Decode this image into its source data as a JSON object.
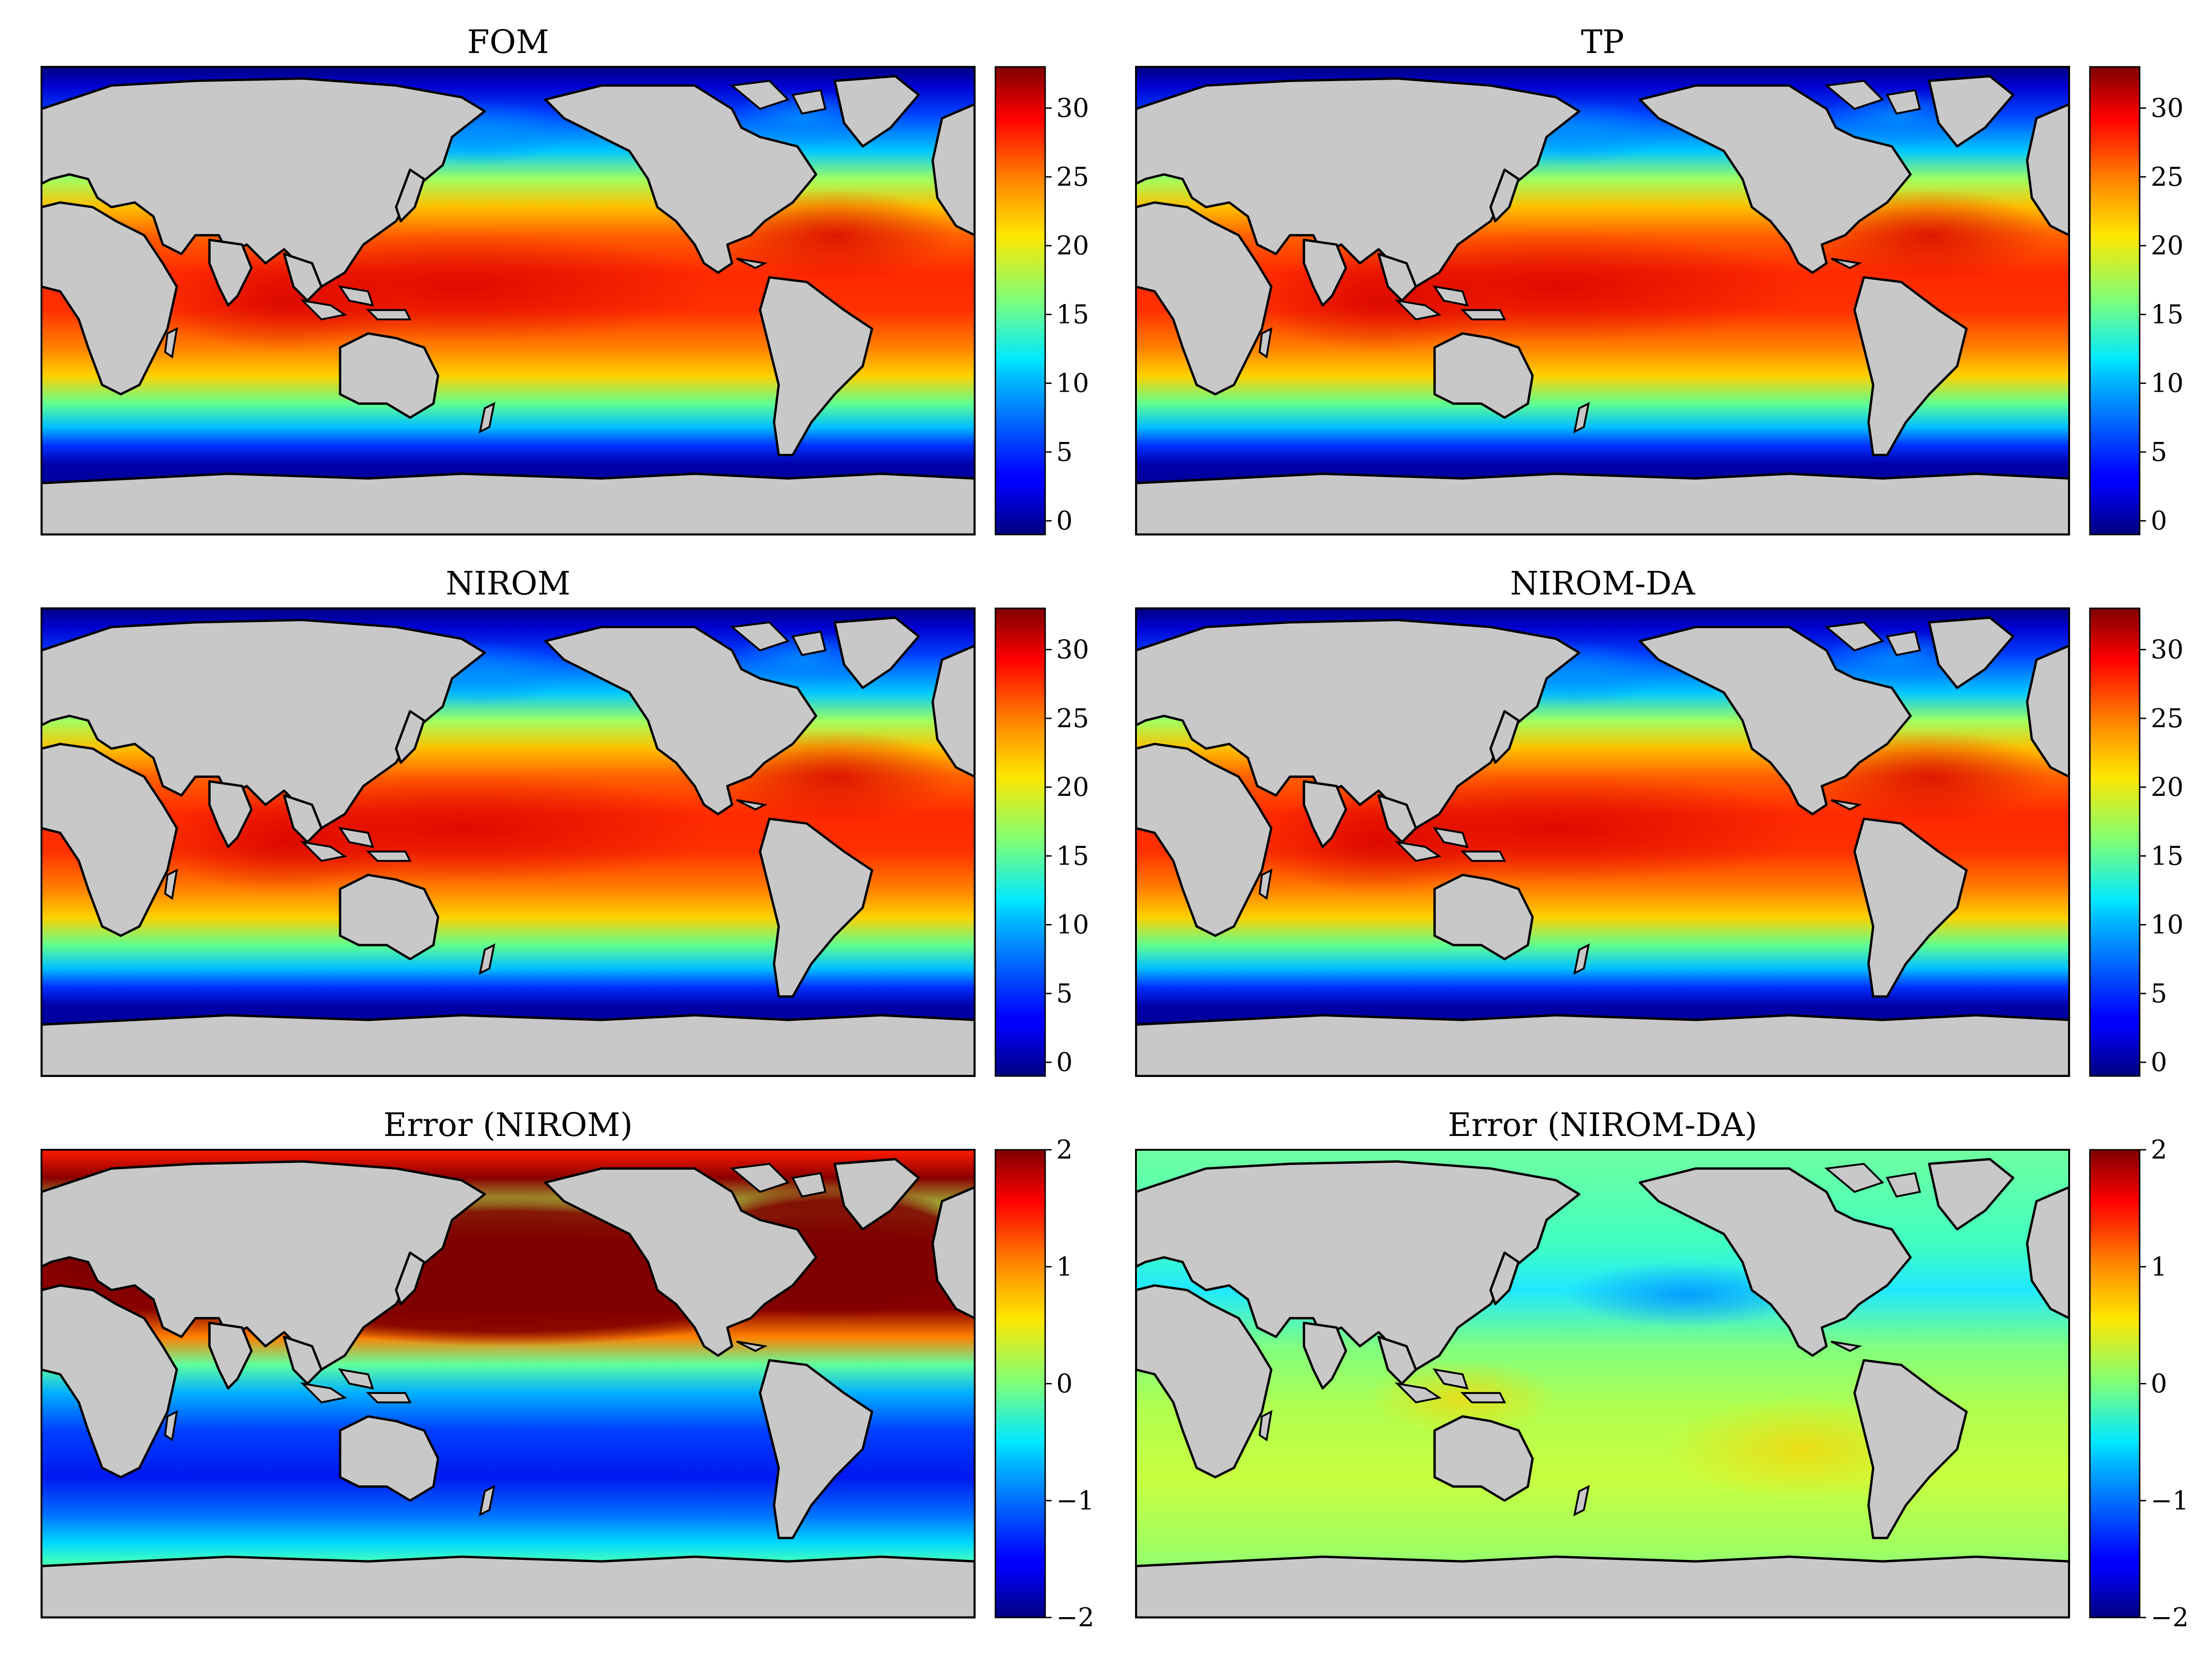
{
  "figure": {
    "colormap": "jet",
    "land_color": "#c8c8c8",
    "panels": [
      {
        "id": "fom",
        "title": "FOM",
        "field": "sst",
        "colorbar": {
          "min": -1,
          "max": 33,
          "ticks": [
            "0",
            "5",
            "10",
            "15",
            "20",
            "25",
            "30"
          ],
          "tick_values": [
            0,
            5,
            10,
            15,
            20,
            25,
            30
          ]
        }
      },
      {
        "id": "tp",
        "title": "TP",
        "field": "sst",
        "colorbar": {
          "min": -1,
          "max": 33,
          "ticks": [
            "0",
            "5",
            "10",
            "15",
            "20",
            "25",
            "30"
          ],
          "tick_values": [
            0,
            5,
            10,
            15,
            20,
            25,
            30
          ]
        }
      },
      {
        "id": "nirom",
        "title": "NIROM",
        "field": "sst",
        "colorbar": {
          "min": -1,
          "max": 33,
          "ticks": [
            "0",
            "5",
            "10",
            "15",
            "20",
            "25",
            "30"
          ],
          "tick_values": [
            0,
            5,
            10,
            15,
            20,
            25,
            30
          ]
        }
      },
      {
        "id": "nirom-da",
        "title": "NIROM-DA",
        "field": "sst",
        "colorbar": {
          "min": -1,
          "max": 33,
          "ticks": [
            "0",
            "5",
            "10",
            "15",
            "20",
            "25",
            "30"
          ],
          "tick_values": [
            0,
            5,
            10,
            15,
            20,
            25,
            30
          ]
        }
      },
      {
        "id": "error-nirom",
        "title": "Error (NIROM)",
        "field": "error_large",
        "colorbar": {
          "min": -2,
          "max": 2,
          "ticks": [
            "−2",
            "−1",
            "0",
            "1",
            "2"
          ],
          "tick_values": [
            -2,
            -1,
            0,
            1,
            2
          ]
        }
      },
      {
        "id": "error-nirom-da",
        "title": "Error (NIROM-DA)",
        "field": "error_small",
        "colorbar": {
          "min": -2,
          "max": 2,
          "ticks": [
            "−2",
            "−1",
            "0",
            "1",
            "2"
          ],
          "tick_values": [
            -2,
            -1,
            0,
            1,
            2
          ]
        }
      }
    ]
  }
}
